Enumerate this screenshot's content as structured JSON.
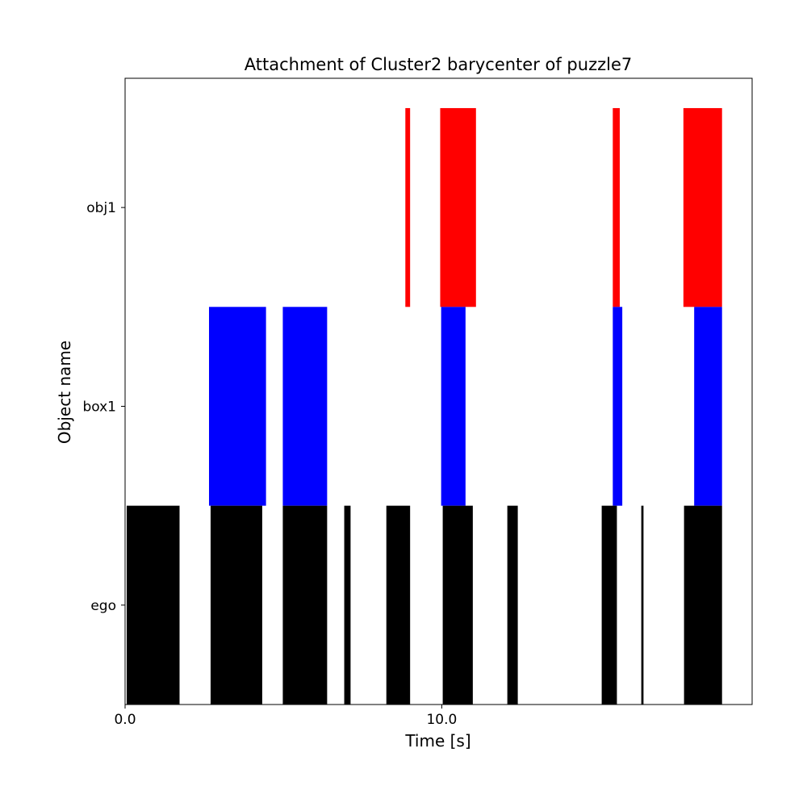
{
  "chart_data": {
    "type": "timeline",
    "title": "Attachment of Cluster2 barycenter of puzzle7",
    "xlabel": "Time [s]",
    "ylabel": "Object name",
    "xlim": [
      0,
      19.8
    ],
    "x_ticks": [
      {
        "value": 0,
        "label": "0.0"
      },
      {
        "value": 10,
        "label": "10.0"
      }
    ],
    "categories": [
      "ego",
      "box1",
      "obj1"
    ],
    "grid": false,
    "series": [
      {
        "category": "obj1",
        "color": "#ff0000",
        "intervals": [
          [
            8.85,
            9.0
          ],
          [
            9.95,
            11.08
          ],
          [
            15.4,
            15.62
          ],
          [
            17.63,
            18.85
          ]
        ]
      },
      {
        "category": "box1",
        "color": "#0000ff",
        "intervals": [
          [
            2.65,
            4.45
          ],
          [
            4.98,
            6.38
          ],
          [
            9.98,
            10.75
          ],
          [
            15.4,
            15.7
          ],
          [
            17.97,
            18.85
          ]
        ]
      },
      {
        "category": "ego",
        "color": "#000000",
        "intervals": [
          [
            0.05,
            1.72
          ],
          [
            2.7,
            4.33
          ],
          [
            4.98,
            6.38
          ],
          [
            6.92,
            7.12
          ],
          [
            8.25,
            9.0
          ],
          [
            10.03,
            10.98
          ],
          [
            12.07,
            12.4
          ],
          [
            15.05,
            15.53
          ],
          [
            16.3,
            16.37
          ],
          [
            17.65,
            18.85
          ]
        ]
      }
    ]
  }
}
